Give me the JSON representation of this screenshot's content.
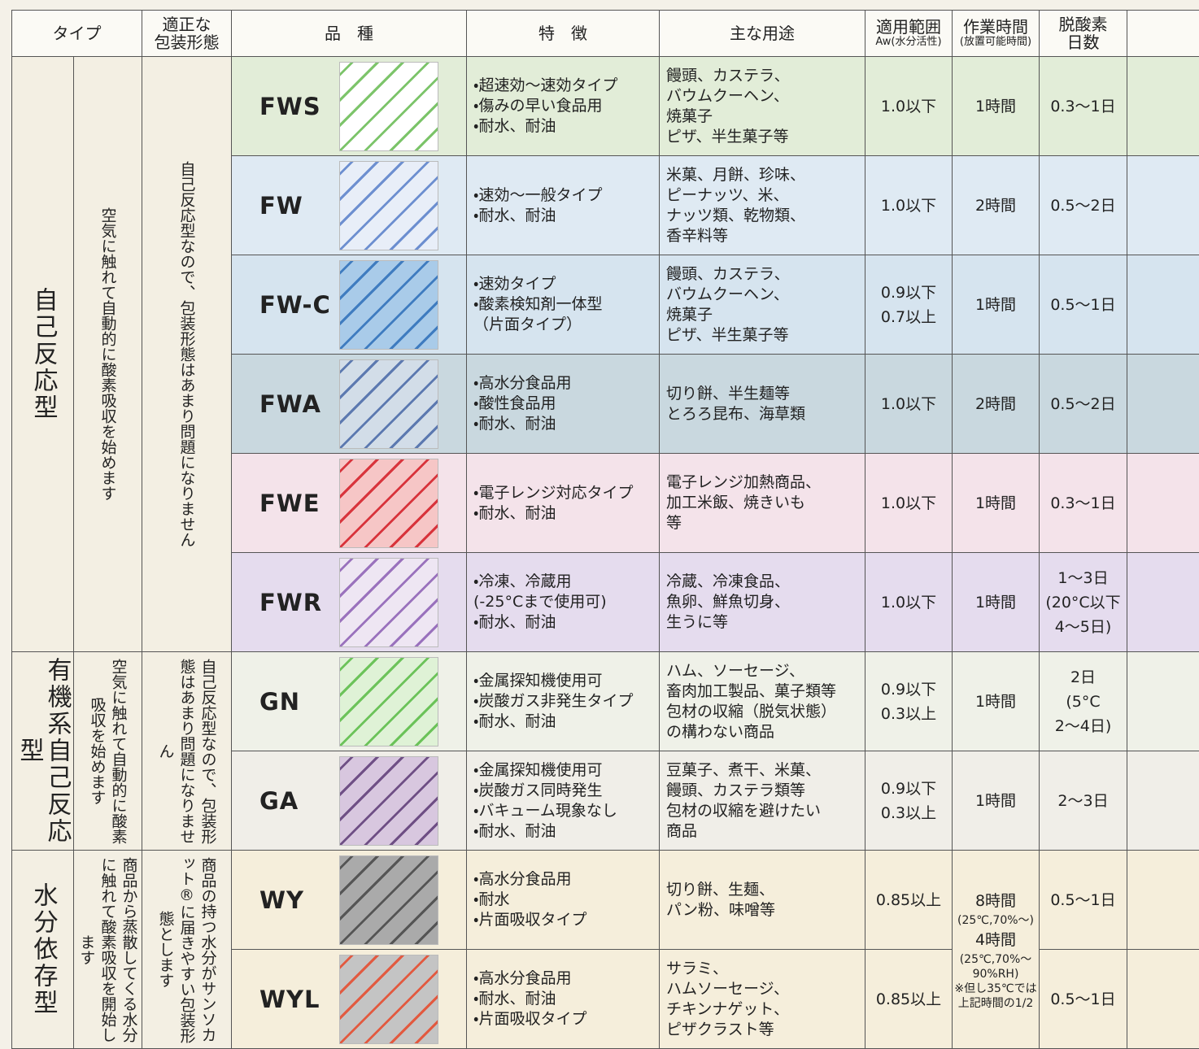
{
  "header": {
    "type": "タイプ",
    "packaging": [
      "適正な",
      "包装形態"
    ],
    "product": "品　種",
    "features": "特　徴",
    "uses": "主な用途",
    "range": {
      "title": "適用範囲",
      "sub": "Aw(水分活性)"
    },
    "time": {
      "title": "作業時間",
      "sub": "(放置可能時間)"
    },
    "days": [
      "脱酸素",
      "日数"
    ]
  },
  "groups": [
    {
      "type": "自己反応型",
      "description": "空気に触れて自動的に酸素吸収を始めます",
      "packaging": "自己反応型なので、包装形態はあまり問題になりません",
      "rows": [
        {
          "name": "FWS",
          "features": [
            "・超速効～速効タイプ",
            "・傷みの早い食品用",
            "・耐水、耐油"
          ],
          "uses": [
            "饅頭、カステラ、",
            "バウムクーヘン、",
            "焼菓子",
            "ピザ、半生菓子等"
          ],
          "range": [
            "1.0以下"
          ],
          "time": [
            "1時間"
          ],
          "days": [
            "0.3～1日"
          ]
        },
        {
          "name": "FW",
          "features": [
            "・速効～一般タイプ",
            "・耐水、耐油"
          ],
          "uses": [
            "米菓、月餅、珍味、",
            "ピーナッツ、米、",
            "ナッツ類、乾物類、",
            "香辛料等"
          ],
          "range": [
            "1.0以下"
          ],
          "time": [
            "2時間"
          ],
          "days": [
            "0.5～2日"
          ]
        },
        {
          "name": "FW-C",
          "features": [
            "・速効タイプ",
            "・酸素検知剤一体型",
            "（片面タイプ）"
          ],
          "uses": [
            "饅頭、カステラ、",
            "バウムクーヘン、",
            "焼菓子",
            "ピザ、半生菓子等"
          ],
          "range": [
            "0.9以下",
            "0.7以上"
          ],
          "time": [
            "1時間"
          ],
          "days": [
            "0.5～1日"
          ]
        },
        {
          "name": "FWA",
          "features": [
            "・高水分食品用",
            "・酸性食品用",
            "・耐水、耐油"
          ],
          "uses": [
            "切り餅、半生麺等",
            "とろろ昆布、海草類"
          ],
          "range": [
            "1.0以下"
          ],
          "time": [
            "2時間"
          ],
          "days": [
            "0.5～2日"
          ]
        },
        {
          "name": "FWE",
          "features": [
            "・電子レンジ対応タイプ",
            "・耐水、耐油"
          ],
          "uses": [
            "電子レンジ加熱商品、",
            "加工米飯、焼きいも",
            "等"
          ],
          "range": [
            "1.0以下"
          ],
          "time": [
            "1時間"
          ],
          "days": [
            "0.3～1日"
          ]
        },
        {
          "name": "FWR",
          "features": [
            "・冷凍、冷蔵用",
            "(-25°Cまで使用可)",
            "・耐水、耐油"
          ],
          "uses": [
            "冷蔵、冷凍食品、",
            "魚卵、鮮魚切身、",
            "生うに等"
          ],
          "range": [
            "1.0以下"
          ],
          "time": [
            "1時間"
          ],
          "days": [
            "1～3日",
            "(20°C以下",
            "4～5日)"
          ]
        }
      ]
    },
    {
      "type": "有機系自己反応型",
      "description": "空気に触れて自動的に酸素吸収を始めます",
      "packaging": "自己反応型なので、包装形態はあまり問題になりません",
      "rows": [
        {
          "name": "GN",
          "features": [
            "・金属探知機使用可",
            "・炭酸ガス非発生タイプ",
            "・耐水、耐油"
          ],
          "uses": [
            "ハム、ソーセージ、",
            "畜肉加工製品、菓子類等",
            "包材の収縮（脱気状態）",
            "の構わない商品"
          ],
          "range": [
            "0.9以下",
            "0.3以上"
          ],
          "time": [
            "1時間"
          ],
          "days": [
            "2日",
            "(5°C",
            "2～4日)"
          ]
        },
        {
          "name": "GA",
          "features": [
            "・金属探知機使用可",
            "・炭酸ガス同時発生",
            "・バキューム現象なし",
            "・耐水、耐油"
          ],
          "uses": [
            "豆菓子、煮干、米菓、",
            "饅頭、カステラ類等",
            "包材の収縮を避けたい",
            "商品"
          ],
          "range": [
            "0.9以下",
            "0.3以上"
          ],
          "time": [
            "1時間"
          ],
          "days": [
            "2～3日"
          ]
        }
      ]
    },
    {
      "type": "水分依存型",
      "description": "商品から蒸散してくる水分に触れて酸素吸収を開始します",
      "packaging": "商品の持つ水分がサンソカット®に届きやすい包装形態とします",
      "time": [
        "8時間",
        "(25℃,70%～)",
        "4時間",
        "(25℃,70%～90%RH)",
        "※但し35℃では上記時間の1/2"
      ],
      "rows": [
        {
          "name": "WY",
          "features": [
            "・高水分食品用",
            "・耐水",
            "・片面吸収タイプ"
          ],
          "uses": [
            "切り餅、生麺、",
            "パン粉、味噌等"
          ],
          "range": [
            "0.85以上"
          ],
          "days": [
            "0.5～1日"
          ]
        },
        {
          "name": "WYL",
          "features": [
            "・高水分食品用",
            "・耐水、耐油",
            "・片面吸収タイプ"
          ],
          "uses": [
            "サラミ、",
            "ハムソーセージ、",
            "チキンナゲット、",
            "ピザクラスト等"
          ],
          "range": [
            "0.85以上"
          ],
          "days": [
            "0.5～1日"
          ]
        }
      ]
    }
  ]
}
